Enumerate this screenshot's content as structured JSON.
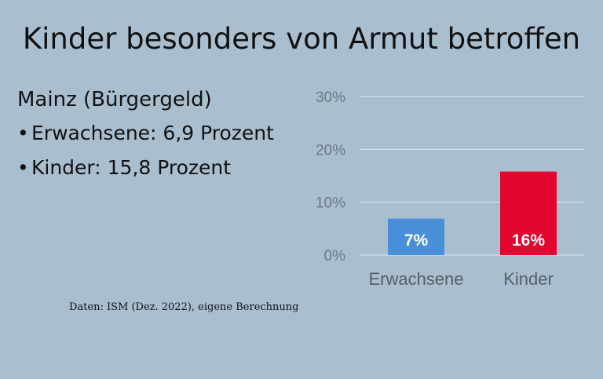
{
  "title": "Kinder besonders von Armut betroffen",
  "info": {
    "subtitle": "Mainz (Bürgergeld)",
    "bullets": [
      "Erwachsene: 6,9 Prozent",
      "Kinder: 15,8 Prozent"
    ],
    "bullet_symbol": "•"
  },
  "source": "Daten: ISM (Dez. 2022), eigene Berechnung",
  "chart_data": {
    "type": "bar",
    "categories": [
      "Erwachsene",
      "Kinder"
    ],
    "values": [
      6.9,
      15.8
    ],
    "data_labels": [
      "7%",
      "16%"
    ],
    "colors": [
      "#4a90d9",
      "#e0062f"
    ],
    "ylim": [
      0,
      30
    ],
    "yticks": [
      0,
      10,
      20,
      30
    ],
    "ytick_labels": [
      "0%",
      "10%",
      "20%",
      "30%"
    ],
    "grid": true,
    "grid_color": "#dde6ec"
  }
}
